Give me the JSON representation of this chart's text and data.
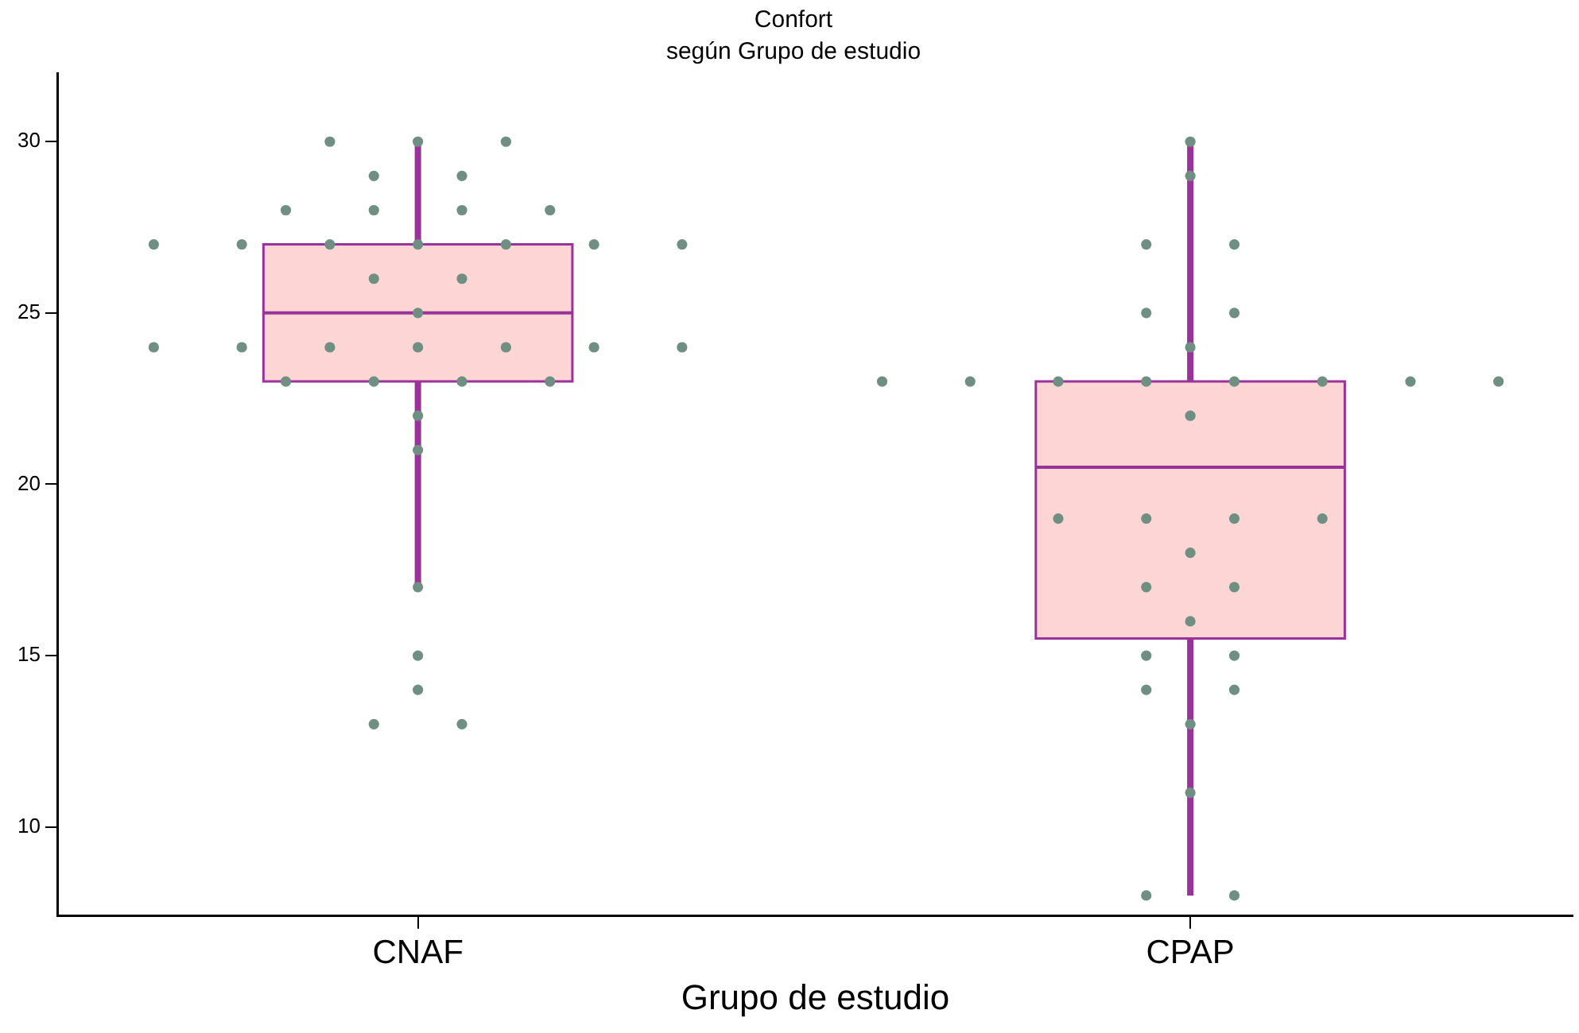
{
  "chart_data": {
    "type": "box",
    "title": "Confort",
    "subtitle": "según Grupo de estudio",
    "xlabel": "Grupo de estudio",
    "categories": [
      "CNAF",
      "CPAP"
    ],
    "ylim": [
      7.4,
      32
    ],
    "yticks": [
      10,
      15,
      20,
      25,
      30
    ],
    "grid": false,
    "legend": false,
    "series": [
      {
        "color": "#fdd5d5",
        "boxes": [
          {
            "low": 17,
            "q1": 23,
            "median": 25,
            "q3": 27,
            "high": 30
          },
          {
            "low": 8,
            "q1": 15.5,
            "median": 20.5,
            "q3": 23,
            "high": 30
          }
        ]
      },
      {
        "type": "scatter",
        "color": "#6f8f83",
        "marker": "circle",
        "x": [
          "CNAF",
          "CNAF",
          "CNAF",
          "CNAF",
          "CNAF",
          "CNAF",
          "CNAF",
          "CNAF",
          "CNAF",
          "CNAF",
          "CNAF",
          "CNAF",
          "CNAF",
          "CNAF",
          "CNAF",
          "CNAF",
          "CNAF",
          "CNAF",
          "CNAF",
          "CNAF",
          "CNAF",
          "CNAF",
          "CNAF",
          "CNAF",
          "CNAF",
          "CNAF",
          "CNAF",
          "CNAF",
          "CNAF",
          "CNAF",
          "CNAF",
          "CNAF",
          "CNAF",
          "CNAF",
          "CNAF",
          "CNAF",
          "CNAF",
          "CPAP",
          "CPAP",
          "CPAP",
          "CPAP",
          "CPAP",
          "CPAP",
          "CPAP",
          "CPAP",
          "CPAP",
          "CPAP",
          "CPAP",
          "CPAP",
          "CPAP",
          "CPAP",
          "CPAP",
          "CPAP",
          "CPAP",
          "CPAP",
          "CPAP",
          "CPAP",
          "CPAP",
          "CPAP",
          "CPAP",
          "CPAP",
          "CPAP",
          "CPAP",
          "CPAP",
          "CPAP",
          "CPAP",
          "CPAP",
          "CPAP",
          "CPAP"
        ],
        "values": [
          30,
          30,
          30,
          29,
          29,
          28,
          28,
          28,
          28,
          27,
          27,
          27,
          27,
          27,
          27,
          27,
          26,
          26,
          25,
          24,
          24,
          24,
          24,
          24,
          24,
          24,
          23,
          23,
          23,
          23,
          22,
          21,
          17,
          15,
          14,
          13,
          13,
          30,
          29,
          27,
          27,
          25,
          25,
          24,
          23,
          23,
          23,
          23,
          23,
          23,
          23,
          23,
          22,
          19,
          19,
          19,
          19,
          18,
          17,
          17,
          16,
          15,
          15,
          14,
          14,
          13,
          11,
          8,
          8
        ]
      }
    ]
  }
}
